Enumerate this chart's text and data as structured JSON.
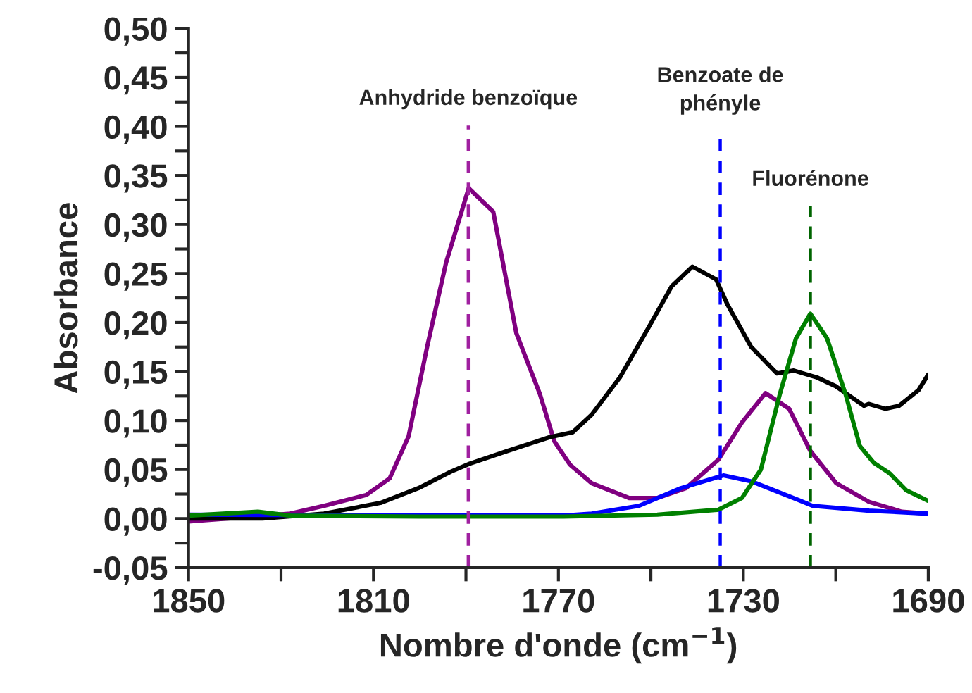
{
  "chart_data": {
    "type": "line",
    "xlabel": "Nombre d'onde (cm$^{−1}$)",
    "ylabel": "Absorbance",
    "xlim": [
      1850,
      1690
    ],
    "xticks": [
      1850,
      {
        "value": 1830,
        "label": null
      },
      1810,
      {
        "value": 1790,
        "label": null
      },
      1770,
      {
        "value": 1750,
        "label": null
      },
      1730,
      {
        "value": 1710,
        "label": null
      },
      1690
    ],
    "ylim": [
      -0.05,
      0.5
    ],
    "yticks": [
      {
        "value": -0.05,
        "label": "-0,05"
      },
      {
        "value": -0.025,
        "label": null
      },
      {
        "value": 0,
        "label": "0,00"
      },
      {
        "value": 0.025,
        "label": null
      },
      {
        "value": 0.05,
        "label": "0,05"
      },
      {
        "value": 0.075,
        "label": null
      },
      {
        "value": 0.1,
        "label": "0,10"
      },
      {
        "value": 0.125,
        "label": null
      },
      {
        "value": 0.15,
        "label": "0,15"
      },
      {
        "value": 0.175,
        "label": null
      },
      {
        "value": 0.2,
        "label": "0,20"
      },
      {
        "value": 0.225,
        "label": null
      },
      {
        "value": 0.25,
        "label": "0,25"
      },
      {
        "value": 0.275,
        "label": null
      },
      {
        "value": 0.3,
        "label": "0,30"
      },
      {
        "value": 0.325,
        "label": null
      },
      {
        "value": 0.35,
        "label": "0,35"
      },
      {
        "value": 0.375,
        "label": null
      },
      {
        "value": 0.4,
        "label": "0,40"
      },
      {
        "value": 0.425,
        "label": null
      },
      {
        "value": 0.45,
        "label": "0,45"
      },
      {
        "value": 0.475,
        "label": null
      },
      {
        "value": 0.5,
        "label": "0,50"
      }
    ],
    "grid": false,
    "legend": false,
    "marker": "none",
    "line_style": "solid",
    "series": [
      {
        "color": "#800080",
        "x": [
          1850,
          1828,
          1820.7,
          1811.6,
          1806.5,
          1802.4,
          1798.4,
          1794.3,
          1789.4,
          1784.1,
          1779.1,
          1774,
          1770.9,
          1767.5,
          1762.8,
          1754.7,
          1748.6,
          1742.4,
          1735.4,
          1730.3,
          1725.2,
          1720.1,
          1715.5,
          1709.9,
          1702.8,
          1695.7,
          1690
        ],
        "values": [
          -0.003,
          0.005,
          0.013,
          0.024,
          0.041,
          0.084,
          0.175,
          0.261,
          0.337,
          0.313,
          0.189,
          0.127,
          0.079,
          0.055,
          0.036,
          0.021,
          0.021,
          0.031,
          0.06,
          0.098,
          0.128,
          0.112,
          0.069,
          0.036,
          0.017,
          0.007,
          0.005
        ]
      },
      {
        "color": "#000000",
        "x": [
          1850,
          1834,
          1820.7,
          1808.5,
          1800.3,
          1793.2,
          1789.2,
          1781,
          1771.9,
          1766.9,
          1762.8,
          1756.7,
          1750.6,
          1745.5,
          1741,
          1735.9,
          1733.4,
          1728.3,
          1722.7,
          1719.1,
          1714.1,
          1710,
          1703.9,
          1702.9,
          1699.3,
          1696.3,
          1692.1,
          1690
        ],
        "values": [
          0.0,
          0.0,
          0.005,
          0.016,
          0.031,
          0.048,
          0.056,
          0.069,
          0.083,
          0.088,
          0.106,
          0.144,
          0.194,
          0.237,
          0.257,
          0.244,
          0.218,
          0.175,
          0.148,
          0.151,
          0.144,
          0.135,
          0.115,
          0.117,
          0.112,
          0.115,
          0.131,
          0.147
        ]
      },
      {
        "color": "#0000ff",
        "x": [
          1850,
          1800,
          1768.9,
          1762.8,
          1752.6,
          1743.5,
          1734.3,
          1728.3,
          1718.1,
          1715,
          1702.8,
          1690
        ],
        "values": [
          0.004,
          0.003,
          0.003,
          0.005,
          0.013,
          0.031,
          0.044,
          0.038,
          0.019,
          0.013,
          0.008,
          0.005
        ]
      },
      {
        "color": "#008000",
        "x": [
          1850,
          1835,
          1828,
          1800,
          1768.9,
          1748.6,
          1735.4,
          1730.3,
          1726.2,
          1722.1,
          1718.6,
          1715.5,
          1711.9,
          1707.9,
          1704.8,
          1701.8,
          1698.3,
          1694.8,
          1690
        ],
        "values": [
          0.003,
          0.007,
          0.003,
          0.002,
          0.002,
          0.004,
          0.009,
          0.021,
          0.05,
          0.127,
          0.184,
          0.209,
          0.184,
          0.127,
          0.074,
          0.057,
          0.046,
          0.029,
          0.018
        ]
      }
    ],
    "ref_lines": [
      {
        "axis": "x",
        "value": 1789.5,
        "label": "Anhydride benzoïque",
        "color": "#a020a0",
        "line_style": "dashed"
      },
      {
        "axis": "x",
        "value": 1735,
        "label": "Benzoate de\nphényle",
        "color": "#0000ff",
        "line_style": "dashed"
      },
      {
        "axis": "x",
        "value": 1715.5,
        "label": "Fluorénone",
        "color": "#006400",
        "line_style": "dashed"
      }
    ]
  }
}
